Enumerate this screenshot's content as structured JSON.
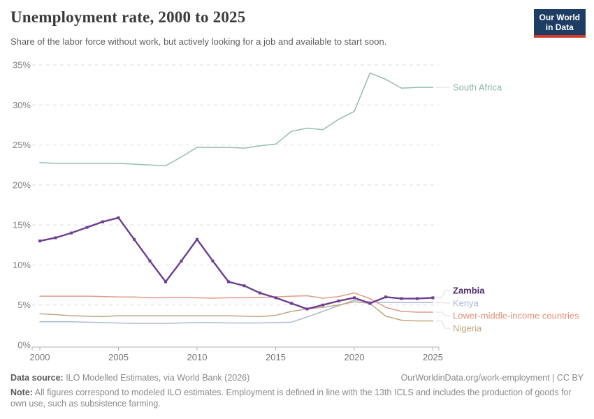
{
  "header": {
    "title": "Unemployment rate, 2000 to 2025",
    "subtitle": "Share of the labor force without work, but actively looking for a job and available to start soon.",
    "logo": {
      "line1": "Our World",
      "line2": "in Data",
      "bg_color": "#1d3d63",
      "accent_color": "#d0392b"
    }
  },
  "chart_data": {
    "type": "line",
    "title": "Unemployment rate, 2000 to 2025",
    "xlabel": "",
    "ylabel": "",
    "x_range": [
      2000,
      2025
    ],
    "ylim": [
      0,
      35
    ],
    "y_ticks": [
      0,
      5,
      10,
      15,
      20,
      25,
      30,
      35
    ],
    "y_tick_suffix": "%",
    "x_ticks": [
      2000,
      2005,
      2010,
      2015,
      2020,
      2025
    ],
    "grid": "horizontal-dashed",
    "legend_position": "right-of-line-ends",
    "grid_color": "#dedede",
    "axis_color": "#b3b3b3",
    "tick_label_color": "#828282",
    "x": [
      2000,
      2001,
      2002,
      2003,
      2004,
      2005,
      2006,
      2007,
      2008,
      2009,
      2010,
      2011,
      2012,
      2013,
      2014,
      2015,
      2016,
      2017,
      2018,
      2019,
      2020,
      2021,
      2022,
      2023,
      2024,
      2025
    ],
    "series": [
      {
        "name": "South Africa",
        "color": "#93bfac",
        "label_color": "#8ab5a2",
        "emphasized": false,
        "values": [
          22.8,
          22.7,
          22.7,
          22.7,
          22.7,
          22.7,
          22.6,
          22.5,
          22.4,
          23.5,
          24.7,
          24.7,
          24.7,
          24.6,
          24.9,
          25.1,
          26.7,
          27.1,
          26.9,
          28.2,
          29.2,
          34.0,
          33.2,
          32.1,
          32.2,
          32.2
        ]
      },
      {
        "name": "Kenya",
        "color": "#a9bcd9",
        "label_color": "#a9bcd9",
        "emphasized": false,
        "values": [
          2.9,
          2.9,
          2.9,
          2.85,
          2.8,
          2.75,
          2.7,
          2.7,
          2.7,
          2.75,
          2.8,
          2.8,
          2.75,
          2.75,
          2.75,
          2.8,
          2.85,
          3.5,
          4.2,
          4.9,
          5.6,
          5.4,
          5.3,
          5.3,
          5.3,
          5.3
        ]
      },
      {
        "name": "Lower-middle-income countries",
        "color": "#e09c83",
        "label_color": "#e0917a",
        "emphasized": false,
        "values": [
          6.1,
          6.1,
          6.1,
          6.1,
          6.05,
          6.0,
          6.0,
          5.9,
          5.9,
          5.95,
          5.9,
          5.85,
          5.9,
          5.9,
          5.95,
          6.0,
          6.1,
          6.15,
          5.85,
          6.05,
          6.5,
          5.8,
          4.7,
          4.2,
          4.1,
          4.1
        ]
      },
      {
        "name": "Nigeria",
        "color": "#c5a77e",
        "label_color": "#c5a77e",
        "emphasized": false,
        "values": [
          3.9,
          3.8,
          3.65,
          3.6,
          3.55,
          3.65,
          3.65,
          3.65,
          3.65,
          3.65,
          3.65,
          3.65,
          3.65,
          3.6,
          3.55,
          3.7,
          4.2,
          4.5,
          4.7,
          5.0,
          5.4,
          5.2,
          3.6,
          3.1,
          3.0,
          3.0
        ]
      },
      {
        "name": "Zambia",
        "color": "#6d3e91",
        "label_color": "#4c2a6e",
        "emphasized": true,
        "values": [
          13.0,
          13.4,
          14.0,
          14.7,
          15.4,
          15.9,
          13.2,
          10.5,
          7.9,
          10.5,
          13.2,
          10.5,
          7.9,
          7.4,
          6.5,
          5.9,
          5.2,
          4.5,
          5.0,
          5.5,
          5.9,
          5.2,
          6.0,
          5.8,
          5.8,
          5.9
        ]
      }
    ]
  },
  "footer": {
    "source_label": "Data source:",
    "source_text": " ILO Modelled Estimates, via World Bank (2026)",
    "link_text": "OurWorldinData.org/work-employment | CC BY",
    "note_label": "Note:",
    "note_text": " All figures correspond to modeled ILO estimates. Employment is defined in line with the 13th ICLS and includes the production of goods for own use, such as subsistence farming."
  }
}
